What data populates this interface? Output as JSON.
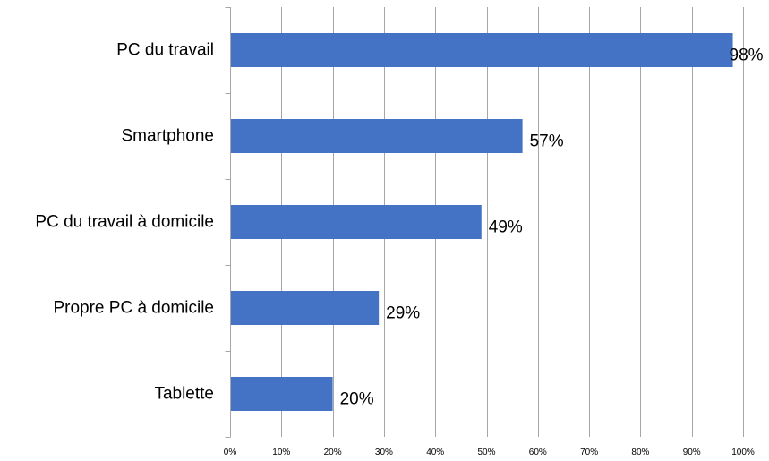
{
  "chart_data": {
    "type": "bar",
    "orientation": "horizontal",
    "categories": [
      "PC du travail",
      "Smartphone",
      "PC du travail à domicile",
      "Propre PC à domicile",
      "Tablette"
    ],
    "values": [
      98,
      57,
      49,
      29,
      20
    ],
    "data_labels": [
      "98%",
      "57%",
      "49%",
      "29%",
      "20%"
    ],
    "xlim": [
      0,
      100
    ],
    "x_ticks": [
      0,
      10,
      20,
      30,
      40,
      50,
      60,
      70,
      80,
      90,
      100
    ],
    "x_tick_labels": [
      "0%",
      "10%",
      "20%",
      "30%",
      "40%",
      "50%",
      "60%",
      "70%",
      "80%",
      "90%",
      "100%"
    ],
    "grid": true,
    "legend": "none",
    "colors": {
      "bar": "#4472C4",
      "grid": "#A6A6A6",
      "axis": "#A6A6A6"
    }
  }
}
